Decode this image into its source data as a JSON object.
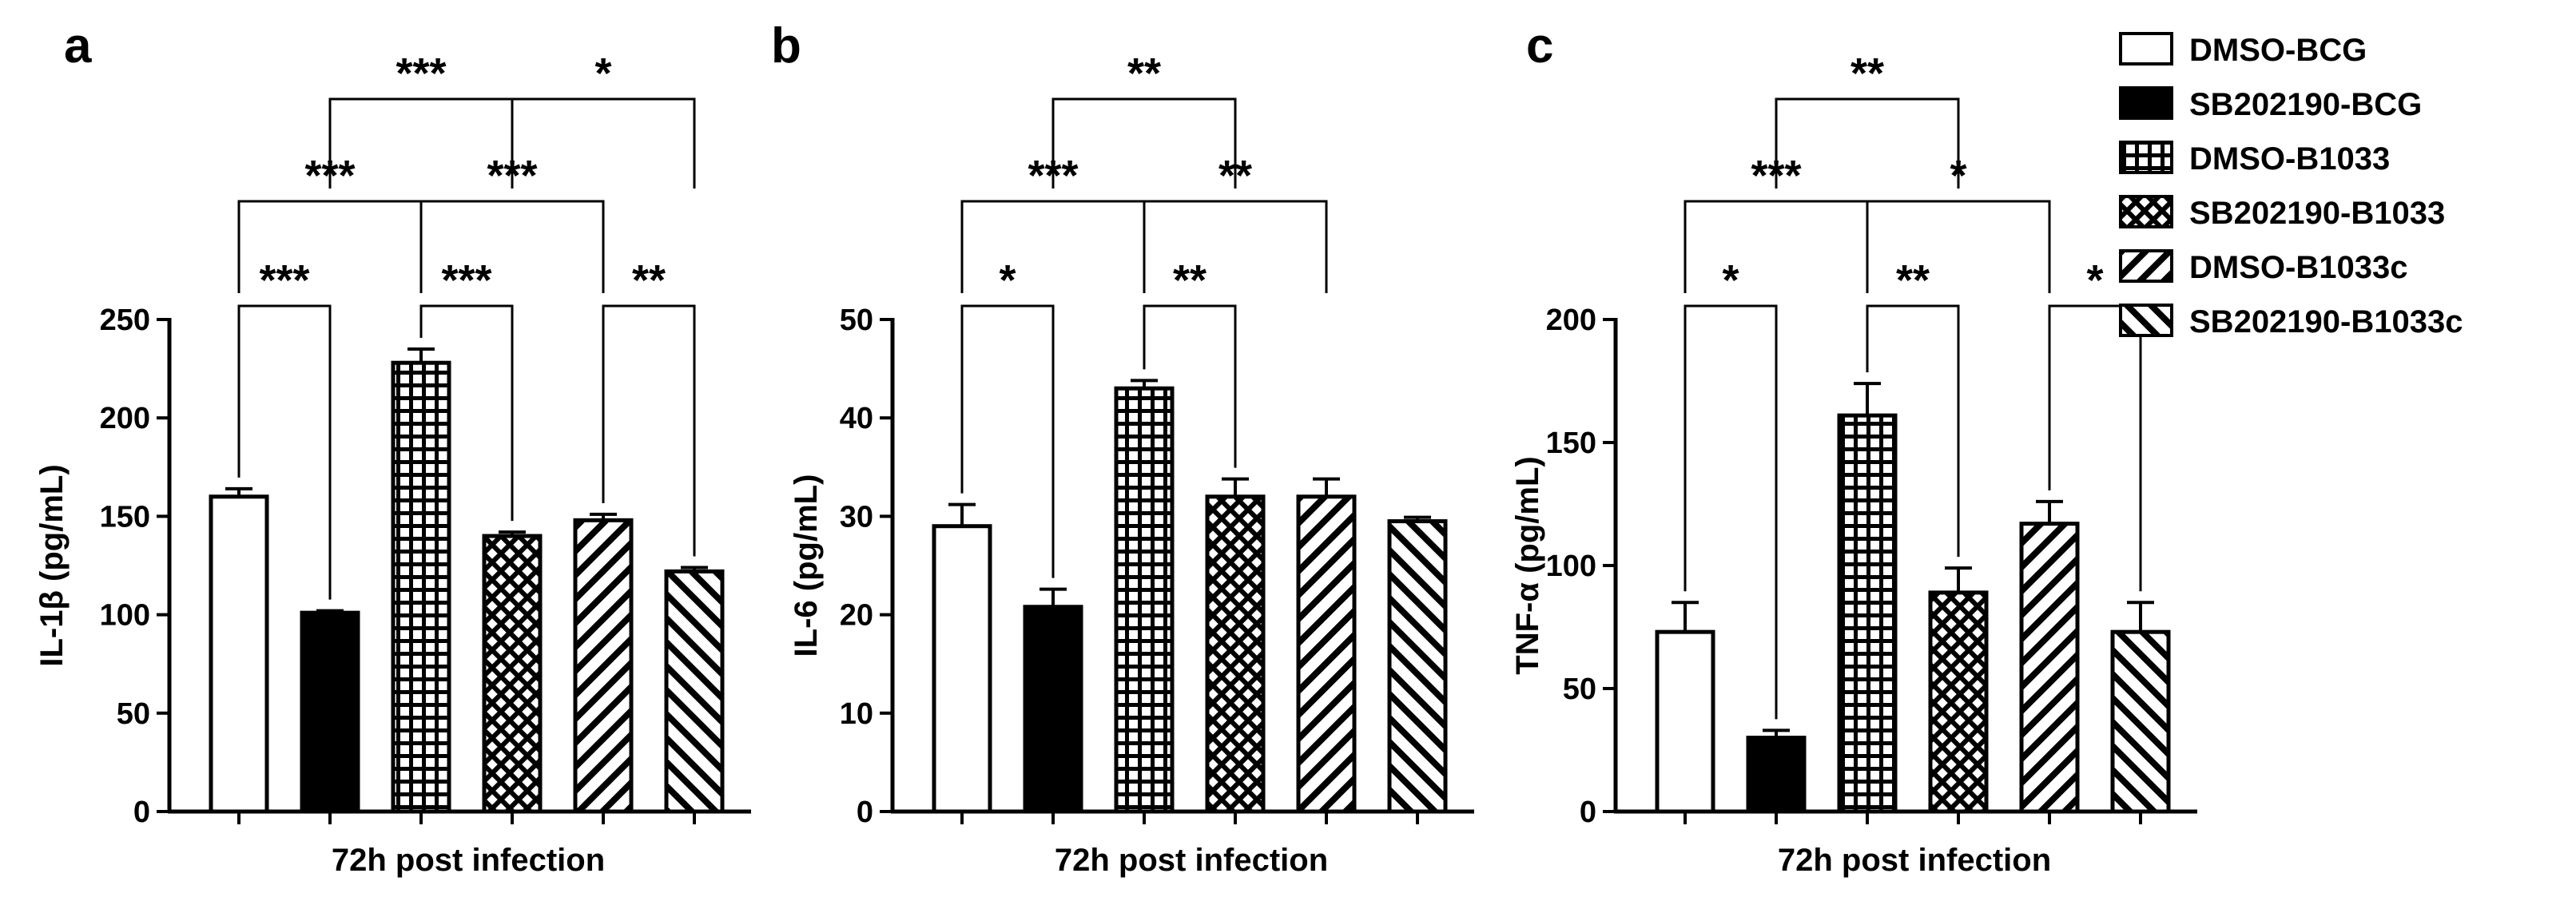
{
  "legend": [
    {
      "name": "DMSO-BCG",
      "pattern": "solid-white"
    },
    {
      "name": "SB202190-BCG",
      "pattern": "solid-black"
    },
    {
      "name": "DMSO-B1033",
      "pattern": "grid"
    },
    {
      "name": "SB202190-B1033",
      "pattern": "crosshatch"
    },
    {
      "name": "DMSO-B1033c",
      "pattern": "diagonal-right"
    },
    {
      "name": "SB202190-B1033c",
      "pattern": "diagonal-left"
    }
  ],
  "colors": {
    "ink": "#000000",
    "background": "#ffffff"
  },
  "chart_data": [
    {
      "panel": "a",
      "type": "bar",
      "ylabel": "IL-1β (pg/mL)",
      "xlabel": "72h post infection",
      "ylim": [
        0,
        250
      ],
      "yticks": [
        0,
        50,
        100,
        150,
        200,
        250
      ],
      "categories": [
        "DMSO-BCG",
        "SB202190-BCG",
        "DMSO-B1033",
        "SB202190-B1033",
        "DMSO-B1033c",
        "SB202190-B1033c"
      ],
      "values": [
        160,
        101,
        228,
        140,
        148,
        122
      ],
      "errors": [
        4,
        1,
        7,
        2,
        3,
        2
      ],
      "significance": [
        {
          "from": 0,
          "to": 1,
          "label": "***",
          "level": 1
        },
        {
          "from": 2,
          "to": 3,
          "label": "***",
          "level": 1
        },
        {
          "from": 4,
          "to": 5,
          "label": "**",
          "level": 1
        },
        {
          "from": 0,
          "to": 2,
          "label": "***",
          "level": 2
        },
        {
          "from": 2,
          "to": 4,
          "label": "***",
          "level": 2
        },
        {
          "from": 1,
          "to": 3,
          "label": "***",
          "level": 3
        },
        {
          "from": 3,
          "to": 5,
          "label": "*",
          "level": 3
        }
      ]
    },
    {
      "panel": "b",
      "type": "bar",
      "ylabel": "IL-6 (pg/mL)",
      "xlabel": "72h post infection",
      "ylim": [
        0,
        50
      ],
      "yticks": [
        0,
        10,
        20,
        30,
        40,
        50
      ],
      "categories": [
        "DMSO-BCG",
        "SB202190-BCG",
        "DMSO-B1033",
        "SB202190-B1033",
        "DMSO-B1033c",
        "SB202190-B1033c"
      ],
      "values": [
        29,
        20.8,
        43,
        32,
        32,
        29.5
      ],
      "errors": [
        2.2,
        1.8,
        0.8,
        1.8,
        1.8,
        0.4
      ],
      "significance": [
        {
          "from": 0,
          "to": 1,
          "label": "*",
          "level": 1
        },
        {
          "from": 2,
          "to": 3,
          "label": "**",
          "level": 1
        },
        {
          "from": 0,
          "to": 2,
          "label": "***",
          "level": 2
        },
        {
          "from": 2,
          "to": 4,
          "label": "**",
          "level": 2
        },
        {
          "from": 1,
          "to": 3,
          "label": "**",
          "level": 3
        }
      ]
    },
    {
      "panel": "c",
      "type": "bar",
      "ylabel": "TNF-α (pg/mL)",
      "xlabel": "72h post infection",
      "ylim": [
        0,
        200
      ],
      "yticks": [
        0,
        50,
        100,
        150,
        200
      ],
      "categories": [
        "DMSO-BCG",
        "SB202190-BCG",
        "DMSO-B1033",
        "SB202190-B1033",
        "DMSO-B1033c",
        "SB202190-B1033c"
      ],
      "values": [
        73,
        30,
        161,
        89,
        117,
        73
      ],
      "errors": [
        12,
        3,
        13,
        10,
        9,
        12
      ],
      "significance": [
        {
          "from": 0,
          "to": 1,
          "label": "*",
          "level": 1
        },
        {
          "from": 2,
          "to": 3,
          "label": "**",
          "level": 1
        },
        {
          "from": 4,
          "to": 5,
          "label": "*",
          "level": 1
        },
        {
          "from": 0,
          "to": 2,
          "label": "***",
          "level": 2
        },
        {
          "from": 2,
          "to": 4,
          "label": "*",
          "level": 2
        },
        {
          "from": 1,
          "to": 3,
          "label": "**",
          "level": 3
        }
      ]
    }
  ]
}
